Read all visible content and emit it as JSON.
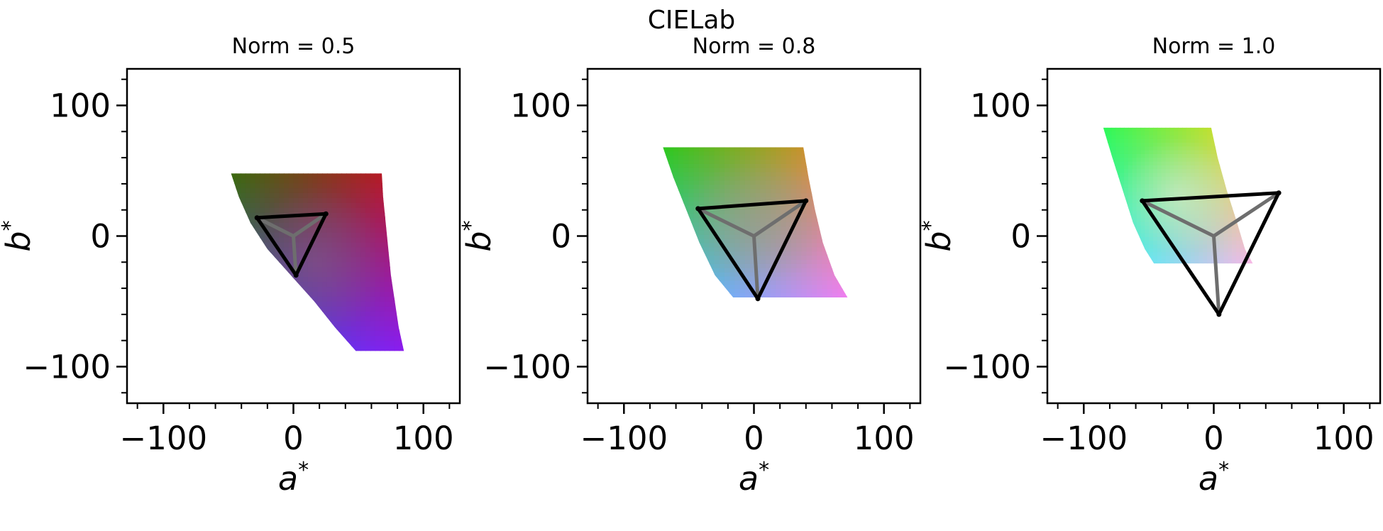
{
  "figure": {
    "title": "CIELab"
  },
  "chart_data": [
    {
      "type": "scatter",
      "title": "Norm = 0.5",
      "xlabel": "a*",
      "ylabel": "b*",
      "xlim": [
        -128,
        128
      ],
      "ylim": [
        -128,
        128
      ],
      "xticks": [
        -100,
        0,
        100
      ],
      "yticks": [
        -100,
        0,
        100
      ],
      "xtick_labels": [
        "−100",
        "0",
        "100"
      ],
      "ytick_labels": [
        "−100",
        "0",
        "100"
      ],
      "gamut_region": {
        "colors": {
          "upper_left": "#3b6a0e",
          "upper_right": "#c80e28",
          "lower_right": "#8a1cf0",
          "lower_left": "#2a58e8",
          "center": "#8a5a8a"
        },
        "a_left": [
          -48,
          -42,
          -33,
          -20,
          -2,
          16,
          32,
          48
        ],
        "b_rows": [
          48,
          30,
          10,
          -10,
          -30,
          -50,
          -70,
          -88
        ],
        "a_right": [
          68,
          69,
          71,
          73,
          75,
          78,
          81,
          85
        ]
      },
      "triangle": [
        [
          -28,
          14
        ],
        [
          25,
          17
        ],
        [
          2,
          -30
        ]
      ],
      "center": [
        0,
        0
      ]
    },
    {
      "type": "scatter",
      "title": "Norm = 0.8",
      "xlabel": "a*",
      "ylabel": "b*",
      "xlim": [
        -128,
        128
      ],
      "ylim": [
        -128,
        128
      ],
      "xticks": [
        -100,
        0,
        100
      ],
      "yticks": [
        -100,
        0,
        100
      ],
      "xtick_labels": [
        "−100",
        "0",
        "100"
      ],
      "ytick_labels": [
        "−100",
        "0",
        "100"
      ],
      "gamut_region": {
        "colors": {
          "upper_left": "#2ec81e",
          "upper_right": "#f8822e",
          "lower_right": "#f07ef0",
          "lower_left": "#2ec8f8",
          "center": "#9a9a8a"
        },
        "a_left": [
          -70,
          -62,
          -52,
          -42,
          -30,
          -16
        ],
        "b_rows": [
          68,
          45,
          20,
          -5,
          -30,
          -47
        ],
        "a_right": [
          38,
          42,
          47,
          53,
          62,
          72
        ]
      },
      "triangle": [
        [
          -43,
          21
        ],
        [
          40,
          27
        ],
        [
          3,
          -48
        ]
      ],
      "center": [
        0,
        0
      ]
    },
    {
      "type": "scatter",
      "title": "Norm = 1.0",
      "xlabel": "a*",
      "ylabel": "b*",
      "xlim": [
        -128,
        128
      ],
      "ylim": [
        -128,
        128
      ],
      "xticks": [
        -100,
        0,
        100
      ],
      "yticks": [
        -100,
        0,
        100
      ],
      "xtick_labels": [
        "−100",
        "0",
        "100"
      ],
      "ytick_labels": [
        "−100",
        "0",
        "100"
      ],
      "gamut_region": {
        "colors": {
          "upper_left": "#2ef858",
          "upper_right": "#f8d820",
          "lower_right": "#f8b8e8",
          "lower_left": "#2ef8f8",
          "center": "#e8f0e0"
        },
        "a_left": [
          -85,
          -78,
          -70,
          -62,
          -53,
          -46
        ],
        "b_rows": [
          83,
          60,
          35,
          10,
          -10,
          -21
        ],
        "a_right": [
          -2,
          3,
          10,
          18,
          24,
          30
        ]
      },
      "triangle": [
        [
          -55,
          27
        ],
        [
          50,
          33
        ],
        [
          4,
          -60
        ]
      ],
      "center": [
        0,
        0
      ]
    }
  ]
}
